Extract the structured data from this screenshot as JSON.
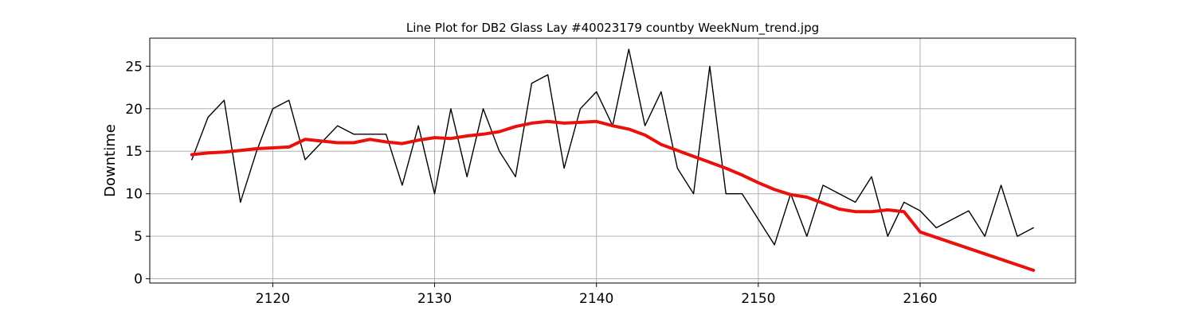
{
  "chart_data": {
    "type": "line",
    "title": "Line Plot for DB2 Glass Lay #40023179 countby WeekNum_trend.jpg",
    "xlabel": "",
    "ylabel": "Downtime",
    "xlim": [
      2112.4,
      2169.6
    ],
    "ylim": [
      -0.5,
      28.3
    ],
    "xticks": [
      2120,
      2130,
      2140,
      2150,
      2160
    ],
    "yticks": [
      0,
      5,
      10,
      15,
      20,
      25
    ],
    "grid": true,
    "series": [
      {
        "style": "raw",
        "color": "#000000",
        "x": [
          2115,
          2116,
          2117,
          2118,
          2119,
          2120,
          2121,
          2122,
          2123,
          2124,
          2125,
          2126,
          2127,
          2128,
          2129,
          2130,
          2131,
          2132,
          2133,
          2134,
          2135,
          2136,
          2137,
          2138,
          2139,
          2140,
          2141,
          2142,
          2143,
          2144,
          2145,
          2146,
          2147,
          2148,
          2149,
          2151,
          2152,
          2153,
          2154,
          2156,
          2157,
          2158,
          2159,
          2160,
          2161,
          2163,
          2164,
          2165,
          2166,
          2167
        ],
        "y": [
          14,
          19,
          21,
          9,
          15,
          20,
          21,
          14,
          16,
          18,
          17,
          17,
          17,
          11,
          18,
          10,
          20,
          12,
          20,
          15,
          12,
          23,
          24,
          13,
          20,
          22,
          18,
          27,
          18,
          22,
          13,
          10,
          25,
          10,
          10,
          4,
          10,
          5,
          11,
          9,
          12,
          5,
          9,
          8,
          6,
          8,
          5,
          11,
          5,
          6
        ]
      },
      {
        "style": "trend",
        "color": "#e8110c",
        "x": [
          2115,
          2116,
          2117,
          2118,
          2119,
          2120,
          2121,
          2122,
          2123,
          2124,
          2125,
          2126,
          2127,
          2128,
          2129,
          2130,
          2131,
          2132,
          2133,
          2134,
          2135,
          2136,
          2137,
          2138,
          2139,
          2140,
          2141,
          2142,
          2143,
          2144,
          2145,
          2146,
          2147,
          2148,
          2149,
          2150,
          2151,
          2152,
          2153,
          2154,
          2155,
          2156,
          2157,
          2158,
          2159,
          2160,
          2167
        ],
        "y": [
          14.6,
          14.8,
          14.9,
          15.1,
          15.3,
          15.4,
          15.5,
          16.4,
          16.2,
          16.0,
          16.0,
          16.4,
          16.1,
          15.9,
          16.3,
          16.6,
          16.5,
          16.8,
          17.0,
          17.3,
          17.9,
          18.3,
          18.5,
          18.3,
          18.4,
          18.5,
          18.0,
          17.6,
          16.9,
          15.8,
          15.1,
          14.4,
          13.7,
          13.0,
          12.2,
          11.3,
          10.5,
          9.9,
          9.6,
          8.9,
          8.2,
          7.9,
          7.9,
          8.1,
          7.9,
          5.5,
          1.0
        ]
      }
    ]
  }
}
